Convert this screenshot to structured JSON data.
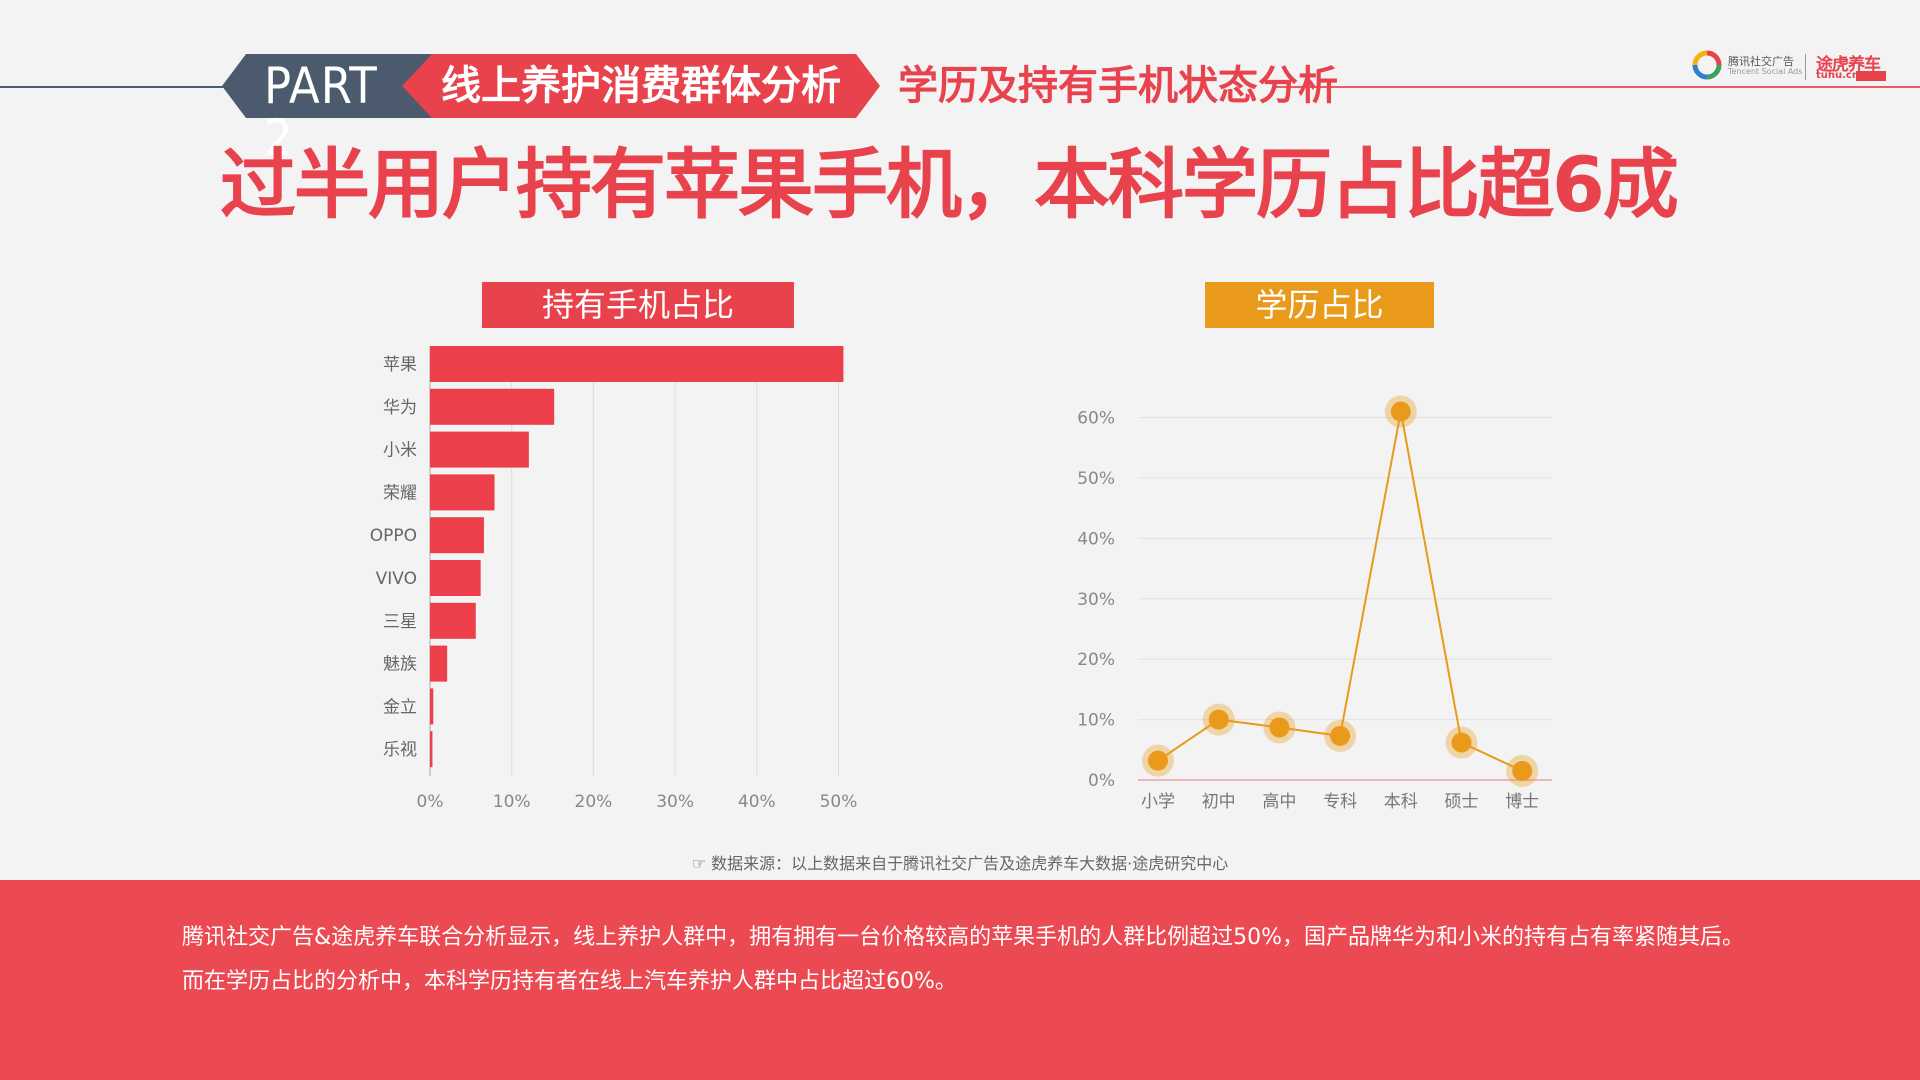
{
  "header": {
    "part_label": "PART 2",
    "section_label": "线上养护消费群体分析",
    "subsection_label": "学历及持有手机状态分析",
    "main_title": "过半用户持有苹果手机，本科学历占比超6成"
  },
  "logos": {
    "tencent_name": "腾讯社交广告",
    "tencent_en": "Tencent Social Ads",
    "tuhu_name": "途虎养车",
    "tuhu_url": "tuhu.cn"
  },
  "colors": {
    "red": "#e8424d",
    "orange": "#e99a1b",
    "navy": "#4c5a6e",
    "bar": "#ec3f49"
  },
  "chart_data": [
    {
      "type": "bar",
      "orientation": "horizontal",
      "title": "持有手机占比",
      "categories": [
        "苹果",
        "华为",
        "小米",
        "荣耀",
        "OPPO",
        "VIVO",
        "三星",
        "魅族",
        "金立",
        "乐视"
      ],
      "values": [
        50.6,
        15.2,
        12.1,
        7.9,
        6.6,
        6.2,
        5.6,
        2.1,
        0.4,
        0.3
      ],
      "xlim": [
        0,
        55
      ],
      "xticks": [
        "0%",
        "10%",
        "20%",
        "30%",
        "40%",
        "50%"
      ],
      "xtick_values": [
        0,
        10,
        20,
        30,
        40,
        50
      ],
      "grid": true
    },
    {
      "type": "line",
      "title": "学历占比",
      "categories": [
        "小学",
        "初中",
        "高中",
        "专科",
        "本科",
        "硕士",
        "博士"
      ],
      "values": [
        3.2,
        10.0,
        8.7,
        7.3,
        61.0,
        6.2,
        1.5
      ],
      "ylim": [
        0,
        60
      ],
      "yticks": [
        "0%",
        "10%",
        "20%",
        "30%",
        "40%",
        "50%",
        "60%"
      ],
      "ytick_values": [
        0,
        10,
        20,
        30,
        40,
        50,
        60
      ],
      "grid": true
    }
  ],
  "source_note": "数据来源：以上数据来自于腾讯社交广告及途虎养车大数据·途虎研究中心",
  "footer": {
    "line1": "腾讯社交广告&途虎养车联合分析显示，线上养护人群中，拥有拥有一台价格较高的苹果手机的人群比例超过50%，国产品牌华为和小米的持有占有率紧随其后。",
    "line2": "而在学历占比的分析中，本科学历持有者在线上汽车养护人群中占比超过60%。"
  }
}
